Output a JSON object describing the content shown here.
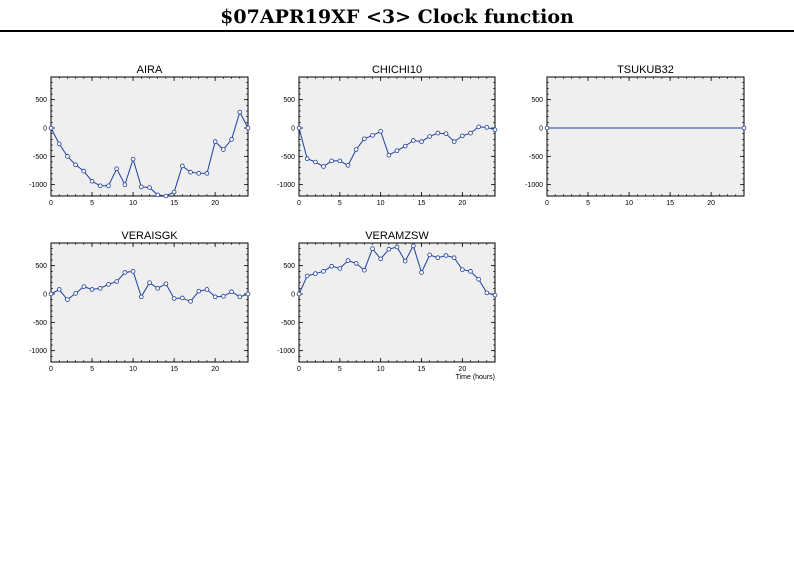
{
  "page": {
    "title": "$07APR19XF <3>  Clock function"
  },
  "chart_data": [
    {
      "type": "line",
      "title": "AIRA",
      "xlabel": "",
      "ylabel": "",
      "xlim": [
        0,
        24
      ],
      "ylim": [
        -1200,
        900
      ],
      "xticks": [
        0,
        5,
        10,
        15,
        20
      ],
      "yticks": [
        500,
        0,
        -500,
        -1000
      ],
      "series": [
        {
          "x": [
            0,
            1,
            2,
            3,
            4,
            5,
            6,
            7,
            8,
            9,
            10,
            11,
            12,
            13,
            14,
            15,
            16,
            17,
            18,
            19,
            20,
            21,
            22,
            23,
            24
          ],
          "y": [
            0,
            -280,
            -500,
            -650,
            -760,
            -940,
            -1020,
            -1020,
            -720,
            -1000,
            -550,
            -1040,
            -1050,
            -1180,
            -1200,
            -1130,
            -670,
            -780,
            -800,
            -800,
            -240,
            -380,
            -200,
            280,
            0
          ]
        }
      ]
    },
    {
      "type": "line",
      "title": "CHICHI10",
      "xlabel": "",
      "ylabel": "",
      "xlim": [
        0,
        24
      ],
      "ylim": [
        -1200,
        900
      ],
      "xticks": [
        0,
        5,
        10,
        15,
        20
      ],
      "yticks": [
        500,
        0,
        -500,
        -1000
      ],
      "series": [
        {
          "x": [
            0,
            1,
            2,
            3,
            4,
            5,
            6,
            7,
            8,
            9,
            10,
            11,
            12,
            13,
            14,
            15,
            16,
            17,
            18,
            19,
            20,
            21,
            22,
            23,
            24
          ],
          "y": [
            0,
            -540,
            -600,
            -680,
            -580,
            -580,
            -660,
            -380,
            -190,
            -130,
            -60,
            -480,
            -400,
            -320,
            -220,
            -240,
            -150,
            -90,
            -100,
            -240,
            -140,
            -90,
            20,
            10,
            -30
          ]
        }
      ]
    },
    {
      "type": "line",
      "title": "TSUKUB32",
      "xlabel": "",
      "ylabel": "",
      "xlim": [
        0,
        24
      ],
      "ylim": [
        -1200,
        900
      ],
      "xticks": [
        0,
        5,
        10,
        15,
        20
      ],
      "yticks": [
        500,
        0,
        -500,
        -1000
      ],
      "series": [
        {
          "x": [
            0,
            24
          ],
          "y": [
            0,
            0
          ]
        }
      ]
    },
    {
      "type": "line",
      "title": "VERAISGK",
      "xlabel": "",
      "ylabel": "",
      "xlim": [
        0,
        24
      ],
      "ylim": [
        -1200,
        900
      ],
      "xticks": [
        0,
        5,
        10,
        15,
        20
      ],
      "yticks": [
        500,
        0,
        -500,
        -1000
      ],
      "series": [
        {
          "x": [
            0,
            1,
            2,
            3,
            4,
            5,
            6,
            7,
            8,
            9,
            10,
            11,
            12,
            13,
            14,
            15,
            16,
            17,
            18,
            19,
            20,
            21,
            22,
            23,
            24
          ],
          "y": [
            0,
            80,
            -100,
            10,
            130,
            80,
            100,
            170,
            220,
            380,
            400,
            -50,
            200,
            100,
            180,
            -80,
            -70,
            -130,
            50,
            80,
            -50,
            -40,
            40,
            -50,
            0
          ]
        }
      ]
    },
    {
      "type": "line",
      "title": "VERAMZSW",
      "xlabel": "Time (hours)",
      "ylabel": "",
      "xlim": [
        0,
        24
      ],
      "ylim": [
        -1200,
        900
      ],
      "xticks": [
        0,
        5,
        10,
        15,
        20
      ],
      "yticks": [
        500,
        0,
        -500,
        -1000
      ],
      "series": [
        {
          "x": [
            0,
            1,
            2,
            3,
            4,
            5,
            6,
            7,
            8,
            9,
            10,
            11,
            12,
            13,
            14,
            15,
            16,
            17,
            18,
            19,
            20,
            21,
            22,
            23,
            24
          ],
          "y": [
            0,
            320,
            360,
            400,
            490,
            450,
            590,
            540,
            420,
            800,
            620,
            790,
            830,
            580,
            850,
            380,
            690,
            640,
            680,
            640,
            430,
            400,
            260,
            20,
            -20
          ]
        }
      ]
    }
  ]
}
